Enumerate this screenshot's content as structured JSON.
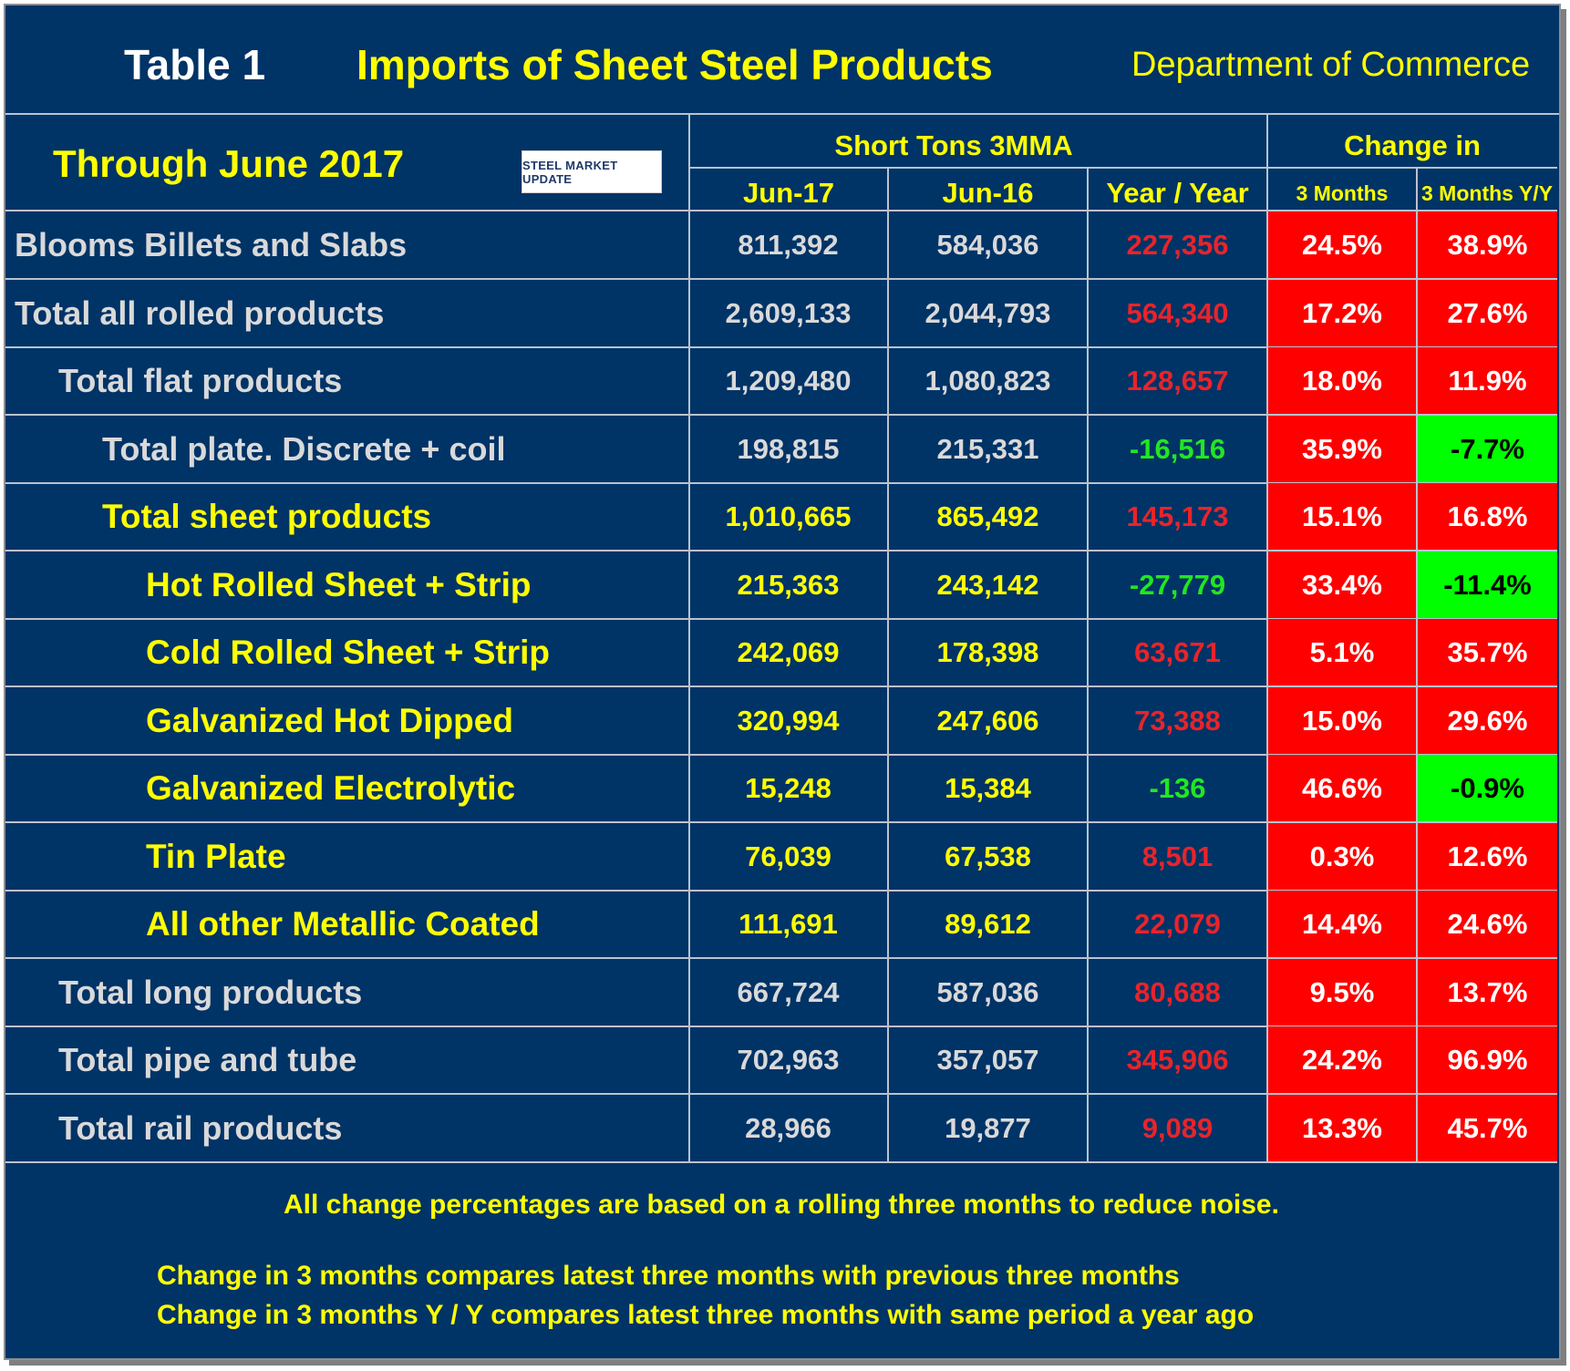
{
  "header": {
    "table_label": "Table 1",
    "title": "Imports of Sheet Steel Products",
    "source": "Department of Commerce",
    "period": "Through June 2017",
    "logo_text": "STEEL MARKET UPDATE"
  },
  "columns": {
    "group1": "Short Tons 3MMA",
    "group2": "Change in",
    "jun17": "Jun-17",
    "jun16": "Jun-16",
    "yoy": "Year / Year",
    "m3": "3 Months",
    "m3yy": "3 Months Y/Y"
  },
  "colors": {
    "background": "#003366",
    "yellow": "#ffff00",
    "gray_text": "#d9d9d9",
    "red_text": "#e8242a",
    "green_text": "#22e622",
    "red_fill": "#ff0000",
    "green_fill": "#00ff00"
  },
  "chart_data": {
    "type": "table",
    "title": "Imports of Sheet Steel Products",
    "subtitle": "Through June 2017",
    "columns": [
      "Jun-17",
      "Jun-16",
      "Year / Year",
      "3 Months",
      "3 Months Y/Y"
    ],
    "rows": [
      {
        "label": "Blooms Billets and Slabs",
        "indent": 0,
        "style": "gray",
        "jun17": "811,392",
        "jun16": "584,036",
        "yoy": "227,356",
        "yoy_sign": "pos",
        "m3": "24.5%",
        "m3_sign": "pos",
        "m3yy": "38.9%",
        "m3yy_sign": "pos"
      },
      {
        "label": "Total all rolled products",
        "indent": 0,
        "style": "gray",
        "jun17": "2,609,133",
        "jun16": "2,044,793",
        "yoy": "564,340",
        "yoy_sign": "pos",
        "m3": "17.2%",
        "m3_sign": "pos",
        "m3yy": "27.6%",
        "m3yy_sign": "pos"
      },
      {
        "label": "Total flat products",
        "indent": 1,
        "style": "gray",
        "jun17": "1,209,480",
        "jun16": "1,080,823",
        "yoy": "128,657",
        "yoy_sign": "pos",
        "m3": "18.0%",
        "m3_sign": "pos",
        "m3yy": "11.9%",
        "m3yy_sign": "pos"
      },
      {
        "label": "Total plate. Discrete + coil",
        "indent": 2,
        "style": "gray",
        "jun17": "198,815",
        "jun16": "215,331",
        "yoy": "-16,516",
        "yoy_sign": "neg",
        "m3": "35.9%",
        "m3_sign": "pos",
        "m3yy": "-7.7%",
        "m3yy_sign": "neg"
      },
      {
        "label": "Total sheet products",
        "indent": 2,
        "style": "yellow",
        "jun17": "1,010,665",
        "jun16": "865,492",
        "yoy": "145,173",
        "yoy_sign": "pos",
        "m3": "15.1%",
        "m3_sign": "pos",
        "m3yy": "16.8%",
        "m3yy_sign": "pos"
      },
      {
        "label": "Hot Rolled Sheet + Strip",
        "indent": 3,
        "style": "yellow",
        "jun17": "215,363",
        "jun16": "243,142",
        "yoy": "-27,779",
        "yoy_sign": "neg",
        "m3": "33.4%",
        "m3_sign": "pos",
        "m3yy": "-11.4%",
        "m3yy_sign": "neg"
      },
      {
        "label": "Cold Rolled Sheet + Strip",
        "indent": 3,
        "style": "yellow",
        "jun17": "242,069",
        "jun16": "178,398",
        "yoy": "63,671",
        "yoy_sign": "pos",
        "m3": "5.1%",
        "m3_sign": "pos",
        "m3yy": "35.7%",
        "m3yy_sign": "pos"
      },
      {
        "label": "Galvanized Hot Dipped",
        "indent": 3,
        "style": "yellow",
        "jun17": "320,994",
        "jun16": "247,606",
        "yoy": "73,388",
        "yoy_sign": "pos",
        "m3": "15.0%",
        "m3_sign": "pos",
        "m3yy": "29.6%",
        "m3yy_sign": "pos"
      },
      {
        "label": "Galvanized Electrolytic",
        "indent": 3,
        "style": "yellow",
        "jun17": "15,248",
        "jun16": "15,384",
        "yoy": "-136",
        "yoy_sign": "neg",
        "m3": "46.6%",
        "m3_sign": "pos",
        "m3yy": "-0.9%",
        "m3yy_sign": "neg"
      },
      {
        "label": "Tin Plate",
        "indent": 3,
        "style": "yellow",
        "jun17": "76,039",
        "jun16": "67,538",
        "yoy": "8,501",
        "yoy_sign": "pos",
        "m3": "0.3%",
        "m3_sign": "pos",
        "m3yy": "12.6%",
        "m3yy_sign": "pos"
      },
      {
        "label": "All other Metallic Coated",
        "indent": 3,
        "style": "yellow",
        "jun17": "111,691",
        "jun16": "89,612",
        "yoy": "22,079",
        "yoy_sign": "pos",
        "m3": "14.4%",
        "m3_sign": "pos",
        "m3yy": "24.6%",
        "m3yy_sign": "pos"
      },
      {
        "label": "Total long products",
        "indent": 1,
        "style": "gray",
        "jun17": "667,724",
        "jun16": "587,036",
        "yoy": "80,688",
        "yoy_sign": "pos",
        "m3": "9.5%",
        "m3_sign": "pos",
        "m3yy": "13.7%",
        "m3yy_sign": "pos"
      },
      {
        "label": "Total pipe and tube",
        "indent": 1,
        "style": "gray",
        "jun17": "702,963",
        "jun16": "357,057",
        "yoy": "345,906",
        "yoy_sign": "pos",
        "m3": "24.2%",
        "m3_sign": "pos",
        "m3yy": "96.9%",
        "m3yy_sign": "pos"
      },
      {
        "label": "Total rail products",
        "indent": 1,
        "style": "gray",
        "jun17": "28,966",
        "jun16": "19,877",
        "yoy": "9,089",
        "yoy_sign": "pos",
        "m3": "13.3%",
        "m3_sign": "pos",
        "m3yy": "45.7%",
        "m3yy_sign": "pos"
      }
    ]
  },
  "notes": {
    "line1": "All change percentages are based on a rolling three months to reduce noise.",
    "line2": "Change in 3 months compares latest three months with previous three months",
    "line3": "Change in 3 months  Y / Y compares latest three months with same period a year ago"
  }
}
